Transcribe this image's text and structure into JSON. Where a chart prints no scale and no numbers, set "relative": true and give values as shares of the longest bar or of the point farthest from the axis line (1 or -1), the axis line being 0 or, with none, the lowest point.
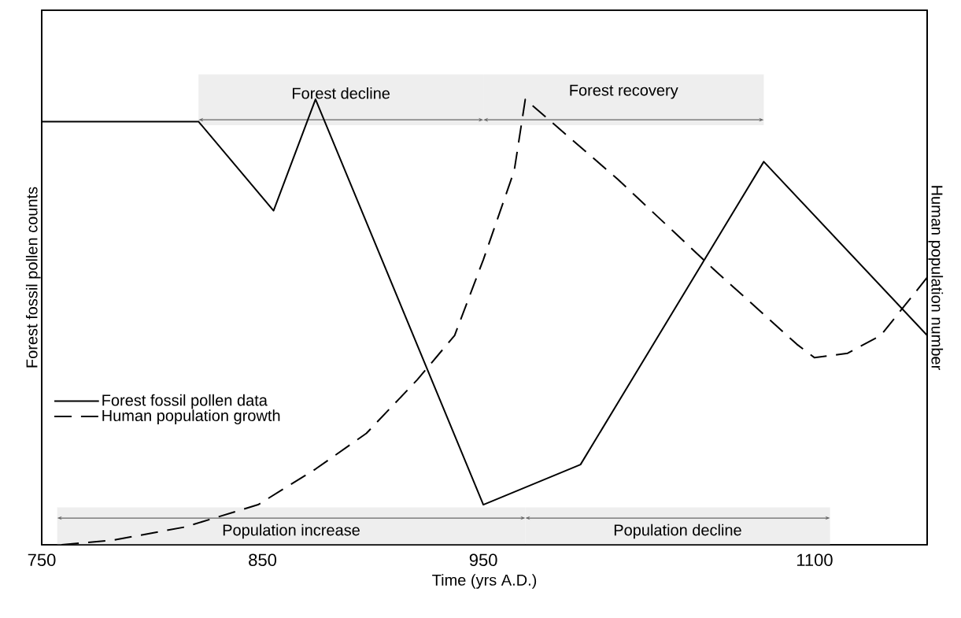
{
  "chart_data": {
    "type": "line",
    "relative": true,
    "xlabel": "Time (yrs A.D.)",
    "ylabel": "Forest fossil pollen counts",
    "y2label": "Human population number",
    "xlim": [
      750,
      1151
    ],
    "xticks": [
      750,
      850,
      950,
      1100
    ],
    "legend": "bottom left",
    "grid": false,
    "series": [
      {
        "name": "Forest fossil pollen data",
        "color": "#000000",
        "line_style": "solid",
        "x": [
          750,
          821,
          855,
          874,
          950,
          994,
          1077,
          1151
        ],
        "values": [
          0.95,
          0.95,
          0.75,
          1,
          0.09,
          0.18,
          0.86,
          0.47
        ]
      },
      {
        "name": "Human population growth",
        "color": "#000000",
        "line_style": "dashed",
        "axis": "y2",
        "x": [
          759,
          782,
          815,
          848,
          874,
          897,
          920,
          937,
          950,
          964,
          969,
          1011,
          1054,
          1092,
          1100,
          1115,
          1130,
          1151
        ],
        "values": [
          0.0,
          0.01,
          0.04,
          0.09,
          0.17,
          0.25,
          0.37,
          0.47,
          0.64,
          0.84,
          1,
          0.82,
          0.62,
          0.45,
          0.42,
          0.43,
          0.47,
          0.6
        ]
      }
    ],
    "bands": [
      {
        "axis": "x",
        "from": 821,
        "to": 950,
        "label": "Forest decline",
        "color": "#eeeeee"
      },
      {
        "axis": "x",
        "from": 950,
        "to": 1077,
        "label": "Forest recovery",
        "color": "#eeeeee"
      },
      {
        "axis": "x",
        "from": 757,
        "to": 969,
        "label": "Population increase",
        "color": "#eeeeee"
      },
      {
        "axis": "x",
        "from": 969,
        "to": 1107,
        "label": "Population decline",
        "color": "#eeeeee"
      }
    ]
  }
}
